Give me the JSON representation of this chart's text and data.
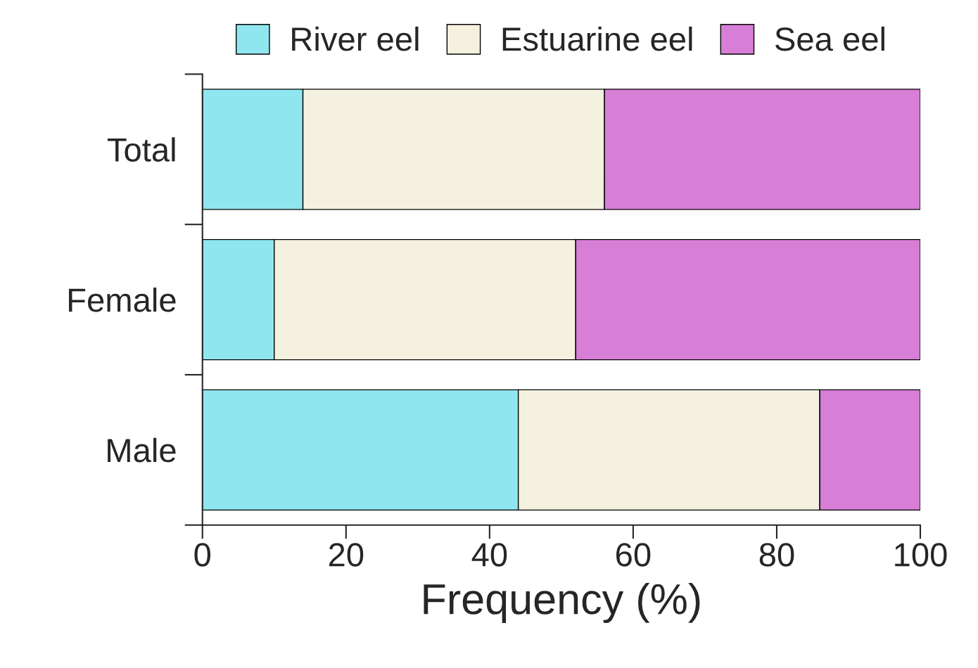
{
  "chart_data": {
    "type": "bar",
    "orientation": "horizontal",
    "stacked": true,
    "categories": [
      "Total",
      "Female",
      "Male"
    ],
    "series": [
      {
        "name": "River eel",
        "color": "#90e6ef",
        "values": [
          14,
          10,
          44
        ]
      },
      {
        "name": "Estuarine eel",
        "color": "#f5f1e1",
        "values": [
          42,
          42,
          42
        ]
      },
      {
        "name": "Sea eel",
        "color": "#d77ed6",
        "values": [
          44,
          48,
          14
        ]
      }
    ],
    "xlabel": "Frequency (%)",
    "xlim": [
      0,
      100
    ],
    "xticks": [
      0,
      20,
      40,
      60,
      80,
      100
    ],
    "grid": false,
    "legend": "top"
  }
}
